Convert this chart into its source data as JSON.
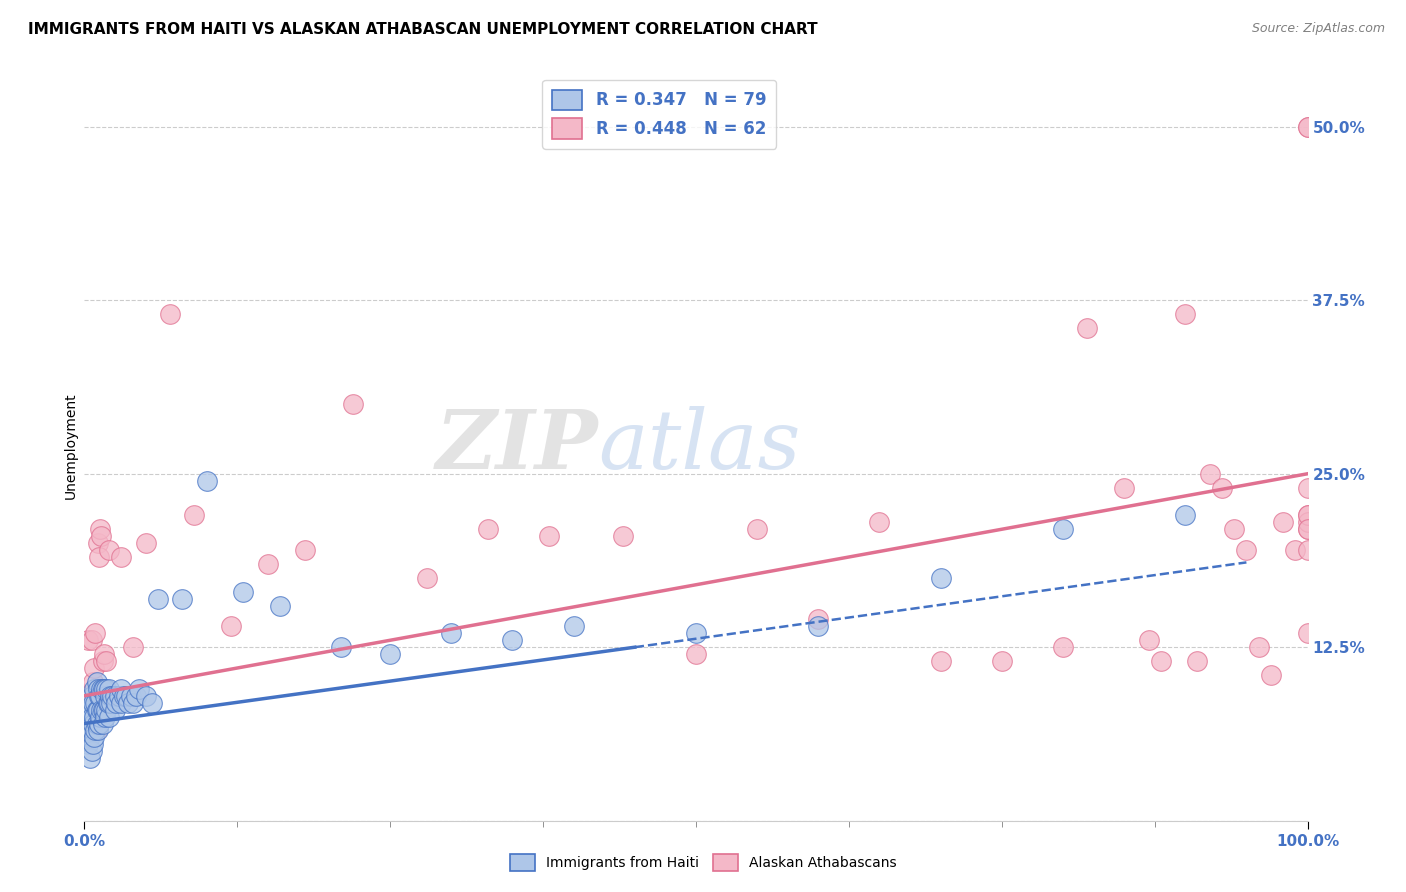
{
  "title": "IMMIGRANTS FROM HAITI VS ALASKAN ATHABASCAN UNEMPLOYMENT CORRELATION CHART",
  "source": "Source: ZipAtlas.com",
  "ylabel": "Unemployment",
  "xlim": [
    0.0,
    1.0
  ],
  "ylim": [
    0.0,
    0.54
  ],
  "y_ticks": [
    0.0,
    0.125,
    0.25,
    0.375,
    0.5
  ],
  "y_tick_labels": [
    "",
    "12.5%",
    "25.0%",
    "37.5%",
    "50.0%"
  ],
  "x_tick_labels": [
    "0.0%",
    "100.0%"
  ],
  "haiti_R": 0.347,
  "haiti_N": 79,
  "athabascan_R": 0.448,
  "athabascan_N": 62,
  "haiti_fill_color": "#aec6e8",
  "athabascan_fill_color": "#f4b8c8",
  "haiti_edge_color": "#4472c4",
  "athabascan_edge_color": "#e07090",
  "haiti_line_color": "#4472c4",
  "athabascan_line_color": "#e07090",
  "haiti_scatter_x": [
    0.002,
    0.002,
    0.003,
    0.003,
    0.004,
    0.004,
    0.005,
    0.005,
    0.005,
    0.006,
    0.006,
    0.006,
    0.006,
    0.007,
    0.007,
    0.007,
    0.008,
    0.008,
    0.008,
    0.009,
    0.009,
    0.01,
    0.01,
    0.01,
    0.011,
    0.011,
    0.011,
    0.012,
    0.012,
    0.013,
    0.013,
    0.014,
    0.014,
    0.015,
    0.015,
    0.015,
    0.016,
    0.016,
    0.017,
    0.017,
    0.018,
    0.018,
    0.019,
    0.02,
    0.02,
    0.02,
    0.021,
    0.022,
    0.023,
    0.025,
    0.025,
    0.026,
    0.028,
    0.03,
    0.03,
    0.032,
    0.034,
    0.036,
    0.038,
    0.04,
    0.042,
    0.045,
    0.05,
    0.055,
    0.06,
    0.08,
    0.1,
    0.13,
    0.16,
    0.21,
    0.25,
    0.3,
    0.35,
    0.4,
    0.5,
    0.6,
    0.7,
    0.8,
    0.9
  ],
  "haiti_scatter_y": [
    0.065,
    0.075,
    0.055,
    0.08,
    0.06,
    0.075,
    0.045,
    0.06,
    0.08,
    0.05,
    0.065,
    0.075,
    0.09,
    0.055,
    0.07,
    0.085,
    0.06,
    0.075,
    0.095,
    0.065,
    0.085,
    0.07,
    0.08,
    0.1,
    0.065,
    0.08,
    0.095,
    0.07,
    0.09,
    0.075,
    0.09,
    0.08,
    0.095,
    0.07,
    0.08,
    0.095,
    0.08,
    0.095,
    0.075,
    0.09,
    0.08,
    0.095,
    0.085,
    0.075,
    0.085,
    0.095,
    0.09,
    0.085,
    0.09,
    0.08,
    0.09,
    0.085,
    0.09,
    0.085,
    0.095,
    0.09,
    0.09,
    0.085,
    0.09,
    0.085,
    0.09,
    0.095,
    0.09,
    0.085,
    0.16,
    0.16,
    0.245,
    0.165,
    0.155,
    0.125,
    0.12,
    0.135,
    0.13,
    0.14,
    0.135,
    0.14,
    0.175,
    0.21,
    0.22
  ],
  "athabascan_scatter_x": [
    0.002,
    0.003,
    0.004,
    0.005,
    0.006,
    0.007,
    0.008,
    0.009,
    0.01,
    0.011,
    0.012,
    0.013,
    0.014,
    0.015,
    0.016,
    0.018,
    0.02,
    0.025,
    0.03,
    0.04,
    0.05,
    0.07,
    0.09,
    0.12,
    0.15,
    0.18,
    0.22,
    0.28,
    0.33,
    0.38,
    0.44,
    0.5,
    0.55,
    0.6,
    0.65,
    0.7,
    0.75,
    0.8,
    0.82,
    0.85,
    0.87,
    0.88,
    0.9,
    0.91,
    0.92,
    0.93,
    0.94,
    0.95,
    0.96,
    0.97,
    0.98,
    0.99,
    1.0,
    1.0,
    1.0,
    1.0,
    1.0,
    1.0,
    1.0,
    1.0,
    1.0,
    1.0
  ],
  "athabascan_scatter_y": [
    0.09,
    0.13,
    0.06,
    0.07,
    0.13,
    0.1,
    0.11,
    0.135,
    0.065,
    0.2,
    0.19,
    0.21,
    0.205,
    0.115,
    0.12,
    0.115,
    0.195,
    0.09,
    0.19,
    0.125,
    0.2,
    0.365,
    0.22,
    0.14,
    0.185,
    0.195,
    0.3,
    0.175,
    0.21,
    0.205,
    0.205,
    0.12,
    0.21,
    0.145,
    0.215,
    0.115,
    0.115,
    0.125,
    0.355,
    0.24,
    0.13,
    0.115,
    0.365,
    0.115,
    0.25,
    0.24,
    0.21,
    0.195,
    0.125,
    0.105,
    0.215,
    0.195,
    0.5,
    0.135,
    0.21,
    0.22,
    0.215,
    0.24,
    0.195,
    0.22,
    0.5,
    0.21
  ],
  "background_color": "#ffffff",
  "grid_color": "#cccccc",
  "title_fontsize": 11,
  "axis_label_fontsize": 10,
  "tick_fontsize": 11,
  "tick_color": "#4472c4",
  "legend_fontsize": 12
}
